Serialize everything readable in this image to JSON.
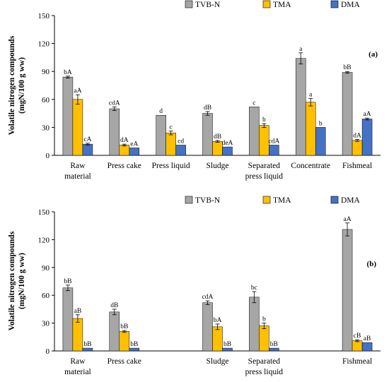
{
  "colors": {
    "TVB-N": "#a6a6a6",
    "TMA": "#ffc000",
    "DMA": "#4472c4",
    "axis": "#000000"
  },
  "ylabel": "Volatile nitrogen compounds (mgN/100 g ww)",
  "chart_data": [
    {
      "type": "bar",
      "panel_label": "(a)",
      "categories": [
        "Raw material",
        "Press cake",
        "Press liquid",
        "Sludge",
        "Separated press liquid",
        "Concentrate",
        "Fishmeal"
      ],
      "ylim": [
        0,
        150
      ],
      "yticks": [
        0,
        30,
        60,
        90,
        120,
        150
      ],
      "ylabel": "Volatile nitrogen compounds (mgN/100 g ww)",
      "legend": {
        "position": "top-right",
        "entries": [
          "TVB-N",
          "TMA",
          "DMA"
        ]
      },
      "series": [
        {
          "name": "TVB-N",
          "values": [
            84,
            50,
            43,
            45,
            52,
            104,
            89
          ],
          "errors": [
            1,
            2,
            0,
            2,
            0,
            6,
            1
          ],
          "labels": [
            "bA",
            "cdA",
            "d",
            "dB",
            "c",
            "a",
            "bB"
          ]
        },
        {
          "name": "TMA",
          "values": [
            60,
            11,
            24,
            15,
            32,
            57,
            16
          ],
          "errors": [
            5,
            1,
            2,
            1,
            2,
            4,
            1
          ],
          "labels": [
            "aA",
            "dA",
            "c",
            "dB",
            "b",
            "a",
            "dA"
          ]
        },
        {
          "name": "DMA",
          "values": [
            12,
            8,
            11,
            9,
            11,
            30,
            39
          ],
          "errors": [
            1,
            0,
            0,
            0,
            0,
            0,
            1
          ],
          "labels": [
            "cA",
            "eA",
            "cd",
            "deA",
            "cdA",
            "b",
            "aA"
          ]
        }
      ]
    },
    {
      "type": "bar",
      "panel_label": "(b)",
      "categories": [
        "Raw material",
        "Press cake",
        "",
        "Sludge",
        "Separated press liquid",
        "",
        "Fishmeal"
      ],
      "ylim": [
        0,
        150
      ],
      "yticks": [
        0,
        30,
        60,
        90,
        120,
        150
      ],
      "ylabel": "Volatile nitrogen compounds (mgN/100 g ww)",
      "legend": {
        "position": "top-right",
        "entries": [
          "TVB-N",
          "TMA",
          "DMA"
        ]
      },
      "series": [
        {
          "name": "TVB-N",
          "values": [
            68,
            42,
            null,
            52,
            58,
            null,
            131
          ],
          "errors": [
            3,
            3,
            null,
            2,
            6,
            null,
            7
          ],
          "labels": [
            "bB",
            "dB",
            "",
            "cdA",
            "bc",
            "",
            "aA"
          ]
        },
        {
          "name": "TMA",
          "values": [
            35,
            21,
            null,
            26,
            27,
            null,
            11
          ],
          "errors": [
            4,
            1,
            null,
            3,
            3,
            null,
            1
          ],
          "labels": [
            "aB",
            "bB",
            "",
            "bA",
            "b",
            "",
            "cB"
          ]
        },
        {
          "name": "DMA",
          "values": [
            3,
            3,
            null,
            3,
            3,
            null,
            9
          ],
          "errors": [
            0,
            0,
            null,
            0,
            0,
            null,
            0
          ],
          "labels": [
            "bB",
            "bB",
            "",
            "bB",
            "bB",
            "",
            "aB"
          ]
        }
      ]
    }
  ]
}
